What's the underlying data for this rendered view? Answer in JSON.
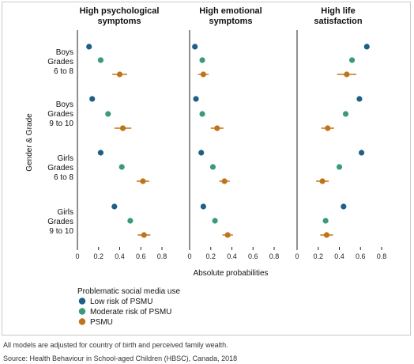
{
  "chart_data": {
    "type": "scatter",
    "panels": [
      {
        "title_line1": "High psychological",
        "title_line2": "symptoms"
      },
      {
        "title_line1": "High emotional",
        "title_line2": "symptoms"
      },
      {
        "title_line1": "High life",
        "title_line2": "satisfaction"
      }
    ],
    "groups": [
      {
        "line1": "Boys",
        "line2": "Grades",
        "line3": "6 to 8"
      },
      {
        "line1": "Boys",
        "line2": "Grades",
        "line3": "9 to 10"
      },
      {
        "line1": "Girls",
        "line2": "Grades",
        "line3": "6 to 8"
      },
      {
        "line1": "Girls",
        "line2": "Grades",
        "line3": "9 to 10"
      }
    ],
    "ylabel": "Gender & Grade",
    "xlabel": "Absolute probabilities",
    "xticks": [
      0,
      0.2,
      0.4,
      0.6,
      0.8
    ],
    "xtick_labels": [
      "0",
      "0.2",
      "0.4",
      "0.6",
      "0.8"
    ],
    "xlim": [
      0,
      0.8
    ],
    "legend_title": "Problematic social media use",
    "legend_position": "bottom-left",
    "series": [
      {
        "name": "Low risk of PSMU",
        "color": "#1f5f86",
        "values": [
          [
            0.11,
            0.05,
            0.66
          ],
          [
            0.14,
            0.06,
            0.59
          ],
          [
            0.22,
            0.11,
            0.61
          ],
          [
            0.35,
            0.13,
            0.44
          ]
        ],
        "ci": [
          [
            0.01,
            0.01,
            0.01
          ],
          [
            0.01,
            0.01,
            0.01
          ],
          [
            0.015,
            0.01,
            0.015
          ],
          [
            0.02,
            0.01,
            0.02
          ]
        ]
      },
      {
        "name": "Moderate risk of PSMU",
        "color": "#3a9a7c",
        "values": [
          [
            0.22,
            0.12,
            0.52
          ],
          [
            0.29,
            0.12,
            0.46
          ],
          [
            0.42,
            0.22,
            0.4
          ],
          [
            0.5,
            0.24,
            0.27
          ]
        ],
        "ci": [
          [
            0.025,
            0.02,
            0.025
          ],
          [
            0.025,
            0.02,
            0.025
          ],
          [
            0.025,
            0.02,
            0.025
          ],
          [
            0.025,
            0.02,
            0.025
          ]
        ]
      },
      {
        "name": "PSMU",
        "color": "#c0731a",
        "values": [
          [
            0.4,
            0.13,
            0.47
          ],
          [
            0.43,
            0.26,
            0.29
          ],
          [
            0.62,
            0.33,
            0.24
          ],
          [
            0.63,
            0.36,
            0.28
          ]
        ],
        "ci": [
          [
            0.07,
            0.05,
            0.09
          ],
          [
            0.08,
            0.06,
            0.06
          ],
          [
            0.06,
            0.05,
            0.06
          ],
          [
            0.06,
            0.05,
            0.06
          ]
        ]
      }
    ]
  },
  "footnotes": {
    "line1": "All models are adjusted for country of birth and perceived family wealth.",
    "line2": "Source: Health Behaviour in School-aged Children (HBSC), Canada, 2018"
  }
}
